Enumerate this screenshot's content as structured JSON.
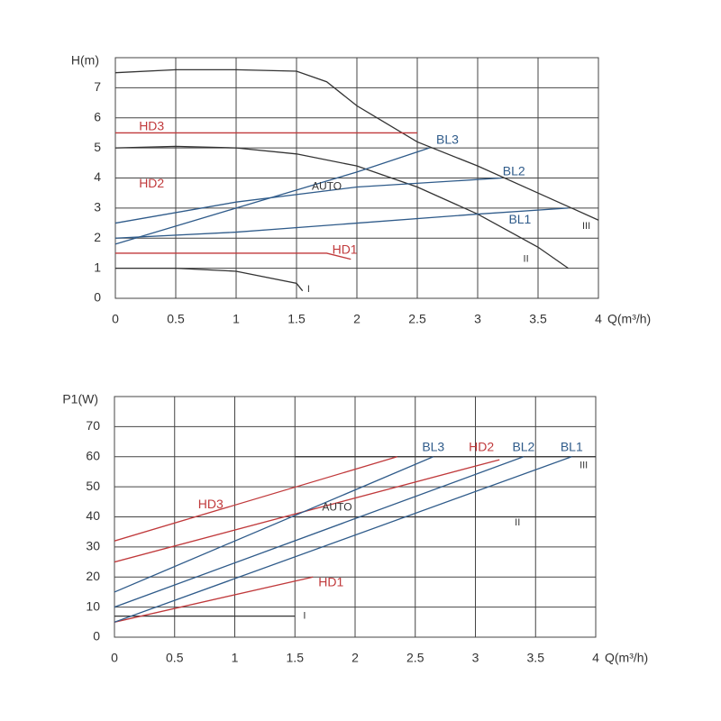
{
  "chart_data": [
    {
      "type": "line",
      "x_label": "Q(m³/h)",
      "y_label": "H(m)",
      "xlim": [
        0,
        4
      ],
      "ylim": [
        0,
        8
      ],
      "xticks": [
        0,
        0.5,
        1,
        1.5,
        2,
        2.5,
        3,
        3.5,
        4
      ],
      "yticks": [
        0,
        1,
        2,
        3,
        4,
        5,
        6,
        7
      ],
      "grid": true,
      "series": [
        {
          "name": "III",
          "color": "#333333",
          "x": [
            0,
            0.5,
            1,
            1.5,
            1.75,
            2,
            2.5,
            3,
            3.5,
            4
          ],
          "values": [
            7.5,
            7.6,
            7.6,
            7.55,
            7.2,
            6.4,
            5.2,
            4.4,
            3.5,
            2.6
          ]
        },
        {
          "name": "II",
          "color": "#333333",
          "x": [
            0,
            0.5,
            1,
            1.5,
            2,
            2.5,
            3,
            3.5,
            3.75
          ],
          "values": [
            5.0,
            5.05,
            5.0,
            4.8,
            4.4,
            3.7,
            2.8,
            1.7,
            1.0
          ]
        },
        {
          "name": "I",
          "color": "#333333",
          "x": [
            0,
            0.5,
            1,
            1.5,
            1.55
          ],
          "values": [
            1.0,
            1.0,
            0.9,
            0.5,
            0.25
          ]
        },
        {
          "name": "HD3",
          "color": "#c0393b",
          "x": [
            0,
            2.5
          ],
          "values": [
            5.5,
            5.5
          ]
        },
        {
          "name": "HD1",
          "color": "#c0393b",
          "x": [
            0,
            1.75,
            1.95
          ],
          "values": [
            1.5,
            1.5,
            1.3
          ]
        },
        {
          "name": "BL3",
          "color": "#2f5b8a",
          "x": [
            0,
            1,
            2,
            2.6
          ],
          "values": [
            1.8,
            3.0,
            4.2,
            5.0
          ]
        },
        {
          "name": "BL2",
          "color": "#2f5b8a",
          "x": [
            0,
            1,
            2,
            3.2
          ],
          "values": [
            2.5,
            3.2,
            3.7,
            4.0
          ]
        },
        {
          "name": "BL1",
          "color": "#2f5b8a",
          "x": [
            0,
            1,
            2,
            3,
            3.75
          ],
          "values": [
            2.0,
            2.2,
            2.5,
            2.8,
            3.0
          ]
        }
      ],
      "annotations": [
        {
          "text": "HD2",
          "color": "#c0393b"
        },
        {
          "text": "AUTO",
          "color": "#333333"
        }
      ]
    },
    {
      "type": "line",
      "x_label": "Q(m³/h)",
      "y_label": "P1(W)",
      "xlim": [
        0,
        4
      ],
      "ylim": [
        0,
        80
      ],
      "xticks": [
        0,
        0.5,
        1,
        1.5,
        2,
        2.5,
        3,
        3.5,
        4
      ],
      "yticks": [
        0,
        10,
        20,
        30,
        40,
        50,
        60,
        70
      ],
      "grid": true,
      "series": [
        {
          "name": "III",
          "color": "#333333",
          "x": [
            1.5,
            4
          ],
          "values": [
            60,
            60
          ]
        },
        {
          "name": "II",
          "color": "#333333",
          "x": [
            1.5,
            4
          ],
          "values": [
            40,
            40
          ]
        },
        {
          "name": "I",
          "color": "#333333",
          "x": [
            0,
            1.5
          ],
          "values": [
            7,
            7
          ]
        },
        {
          "name": "HD3",
          "color": "#c0393b",
          "x": [
            0,
            2.35
          ],
          "values": [
            32,
            60
          ]
        },
        {
          "name": "HD2",
          "color": "#c0393b",
          "x": [
            0,
            3.2
          ],
          "values": [
            25,
            59
          ]
        },
        {
          "name": "HD1",
          "color": "#c0393b",
          "x": [
            0,
            1.65
          ],
          "values": [
            5,
            20
          ]
        },
        {
          "name": "BL3",
          "color": "#2f5b8a",
          "x": [
            0,
            2.65
          ],
          "values": [
            15,
            60
          ]
        },
        {
          "name": "BL2",
          "color": "#2f5b8a",
          "x": [
            0,
            3.4
          ],
          "values": [
            10,
            60
          ]
        },
        {
          "name": "BL1",
          "color": "#2f5b8a",
          "x": [
            0,
            3.8
          ],
          "values": [
            5,
            60
          ]
        }
      ],
      "annotations": [
        {
          "text": "AUTO",
          "color": "#333333"
        }
      ]
    }
  ]
}
